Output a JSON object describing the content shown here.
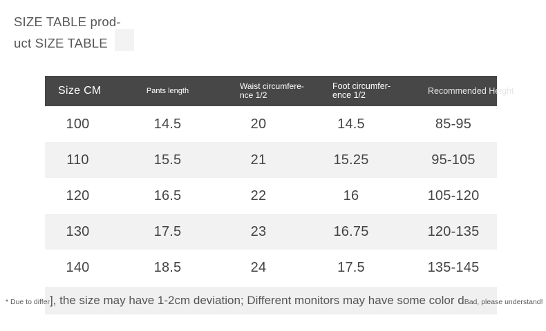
{
  "title": {
    "line1": "SIZE TABLE prod-",
    "line2": "uct SIZE TABLE"
  },
  "size_table": {
    "columns": [
      {
        "id": "size-cm",
        "lines": [
          "Size CM"
        ]
      },
      {
        "id": "pants-length",
        "lines": [
          "Pants length"
        ]
      },
      {
        "id": "waist-circumference-half",
        "lines": [
          "Waist circumfere-",
          "nce 1/2"
        ]
      },
      {
        "id": "foot-circumference-half",
        "lines": [
          "Foot circumfer-",
          "ence 1/2"
        ]
      },
      {
        "id": "recommended-height",
        "lines": [
          "Recommended Height"
        ]
      }
    ],
    "rows": [
      [
        "100",
        "14.5",
        "20",
        "14.5",
        "85-95"
      ],
      [
        "110",
        "15.5",
        "21",
        "15.25",
        "95-105"
      ],
      [
        "120",
        "16.5",
        "22",
        "16",
        "105-120"
      ],
      [
        "130",
        "17.5",
        "23",
        "16.75",
        "120-135"
      ],
      [
        "140",
        "18.5",
        "24",
        "17.5",
        "135-145"
      ]
    ]
  },
  "disclaimer": {
    "prefix_small": "* Due to differ",
    "main": "], the size may have 1-2cm deviation; Different monitors may have some color d",
    "suffix_small": "Bad, please understand!"
  },
  "colors": {
    "header_bg": "#474747",
    "header_text": "#ffffff",
    "header_text_overflow": "#e7e7e7",
    "row_stripe": "#f2f2f2",
    "note_bg": "#f0f0f0",
    "body_text": "#444444",
    "title_text": "#575757"
  }
}
